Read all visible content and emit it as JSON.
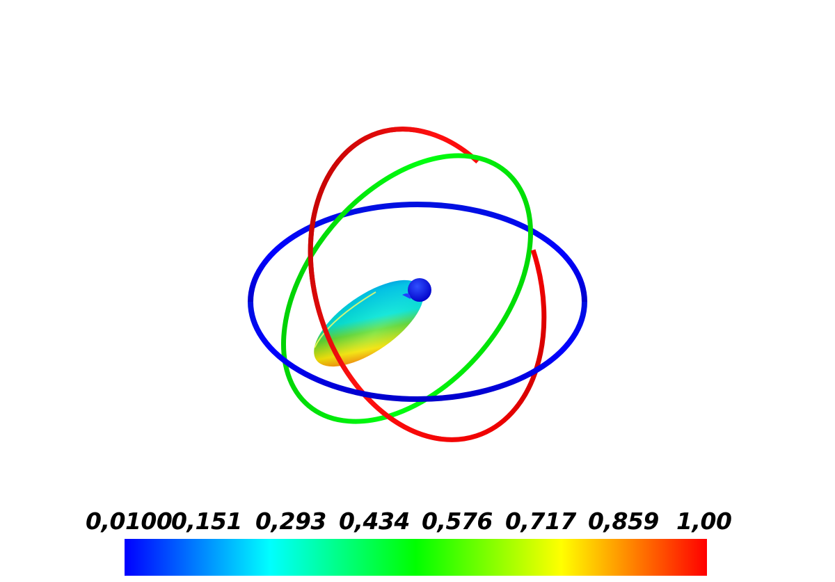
{
  "colorbar": {
    "tick_labels": [
      "0,0100",
      "0,151",
      "0,293",
      "0,434",
      "0,576",
      "0,717",
      "0,859",
      "1,00"
    ],
    "colormap": [
      "#0000ff",
      "#00ffff",
      "#00ff00",
      "#ffff00",
      "#ff0000"
    ]
  },
  "rings": {
    "x_ring_color": "#ff0000",
    "y_ring_color": "#00dd00",
    "z_ring_color": "#0000ff"
  },
  "glyph": {
    "head_color": "#0000ff"
  }
}
